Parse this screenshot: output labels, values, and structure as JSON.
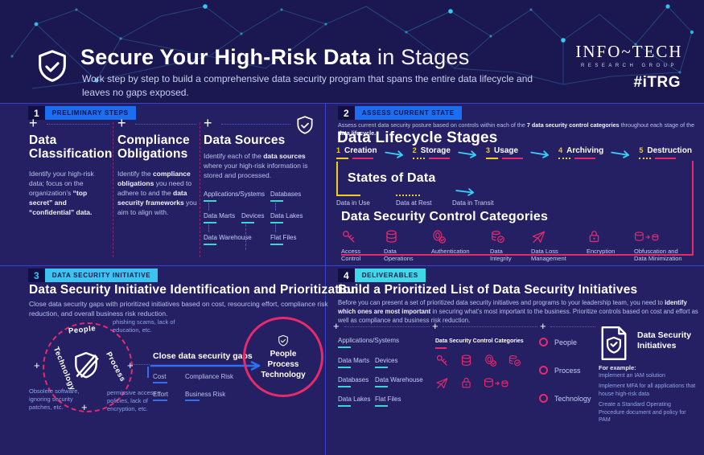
{
  "header": {
    "title_strong": "Secure Your High-Risk Data",
    "title_light": " in Stages",
    "subtitle": "Work step by step to build a comprehensive data security program that spans the entire data lifecycle and leaves no gaps exposed.",
    "brand": {
      "name": "INFO~TECH",
      "sub": "RESEARCH GROUP",
      "tag": "#iTRG"
    },
    "shield_icon": "shield-check-icon"
  },
  "sections": {
    "s1": {
      "num": "1",
      "badge": "PRELIMINARY STEPS",
      "cards": [
        {
          "title": "Data Classification",
          "body": [
            {
              "t": "Identify your high-risk data; focus on the organization’s "
            },
            {
              "t": "“top secret” and “confidential” data.",
              "b": true
            }
          ]
        },
        {
          "title": "Compliance Obligations",
          "body": [
            {
              "t": "Identify the "
            },
            {
              "t": "compliance obligations",
              "b": true
            },
            {
              "t": " you need to adhere to and the "
            },
            {
              "t": "data security frameworks",
              "b": true
            },
            {
              "t": " you aim to align with."
            }
          ]
        },
        {
          "title": "Data Sources",
          "body": [
            {
              "t": "Identify each of the "
            },
            {
              "t": "data sources",
              "b": true
            },
            {
              "t": " where your high-risk information is stored and processed."
            }
          ]
        }
      ],
      "sources": [
        "Applications/Systems",
        "Databases",
        "Data Marts",
        "Devices",
        "Data Lakes",
        "Data Warehouse",
        "Flat Files"
      ]
    },
    "s2": {
      "num": "2",
      "badge": "ASSESS CURRENT STATE",
      "intro": [
        {
          "t": "Assess current data security posture based on controls within each of the "
        },
        {
          "t": "7 data security control categories",
          "b": true
        },
        {
          "t": " throughout each stage of the "
        },
        {
          "t": "data lifecycle.",
          "b": true
        }
      ],
      "lifecycle_title": "Data Lifecycle Stages",
      "stages": [
        {
          "num": "1",
          "name": "Creation",
          "num_mark": "solid"
        },
        {
          "num": "2",
          "name": "Storage",
          "num_mark": "dotted"
        },
        {
          "num": "3",
          "name": "Usage",
          "num_mark": "solid"
        },
        {
          "num": "4",
          "name": "Archiving",
          "num_mark": "dotted"
        },
        {
          "num": "5",
          "name": "Destruction",
          "num_mark": "dotted"
        }
      ],
      "states_title": "States of Data",
      "states": [
        {
          "label": "Data in Use",
          "marker": "solid"
        },
        {
          "label": "Data at Rest",
          "marker": "dotted"
        },
        {
          "label": "Data in Transit",
          "marker": "arrow"
        }
      ],
      "categories_title": "Data Security Control Categories",
      "categories": [
        {
          "icon": "key-icon",
          "label": "Access Control"
        },
        {
          "icon": "database-icon",
          "label": "Data Operations"
        },
        {
          "icon": "fingerprint-check-icon",
          "label": "Authentication"
        },
        {
          "icon": "database-check-icon",
          "label": "Data Integrity"
        },
        {
          "icon": "data-loss-icon",
          "label": "Data Loss Management"
        },
        {
          "icon": "lock-icon",
          "label": "Encryption"
        },
        {
          "icon": "obfuscation-icon",
          "label": "Obfuscation and Data Minimization"
        }
      ]
    },
    "s3": {
      "num": "3",
      "badge": "DATA SECURITY INITIATIVE",
      "title": "Data Security Initiative Identification and Prioritization",
      "body": "Close data security gaps with prioritized initiatives based on cost, resourcing effort, compliance risk reduction, and overall business risk reduction.",
      "wheel": {
        "labels": [
          "People",
          "Technology",
          "Process"
        ],
        "center_icon": "shield-slash-icon"
      },
      "annotations": [
        "phishing scams, lack of education, etc.",
        "Obsolete software, ignoring security patches, etc.",
        "permissive access policies, lack of encryption, etc."
      ],
      "arrow_label": "Close data security gaps",
      "factors": [
        "Cost",
        "Compliance Risk",
        "Effort",
        "Business Risk"
      ],
      "goal": {
        "icon": "shield-check-icon",
        "lines": [
          "People",
          "Process",
          "Technology"
        ]
      }
    },
    "s4": {
      "num": "4",
      "badge": "DELIVERABLES",
      "title": "Build a Prioritized List of Data Security Initiatives",
      "body": [
        {
          "t": "Before you can present a set of prioritized data security initiatives and programs to your leadership team, you need to "
        },
        {
          "t": "identify which ones are most important",
          "b": true
        },
        {
          "t": " in securing what’s most important to the business. Prioritize controls based on cost and effort as well as compliance and business risk reduction."
        }
      ],
      "sources": [
        "Applications/Systems",
        "Data Marts",
        "Devices",
        "Databases",
        "Data Warehouse",
        "Data Lakes",
        "Flat Files"
      ],
      "categories_title": "Data Security Control Categories",
      "bullets": [
        "People",
        "Process",
        "Technology"
      ],
      "deliverable": {
        "icon": "document-shield-icon",
        "title": "Data Security Initiatives",
        "example_label": "For example:",
        "examples": [
          "Implement an IAM solution",
          "Implement MFA for all applications that house high-risk data",
          "Create a Standard Operating Procedure document and policy for PAM"
        ]
      }
    }
  },
  "colors": {
    "background": "#252064",
    "header_background": "#1b1751",
    "divider_blue": "#3743cf",
    "accent_blue": "#1b6ef0",
    "accent_cyan": "#3cc3f0",
    "accent_teal": "#3fd8e8",
    "pink": "#e62a6d",
    "yellow": "#f2cf1f",
    "teal_underline": "#38d8d2",
    "arrow_cyan": "#35d0f5",
    "arrow_blue": "#2f6ff2"
  }
}
